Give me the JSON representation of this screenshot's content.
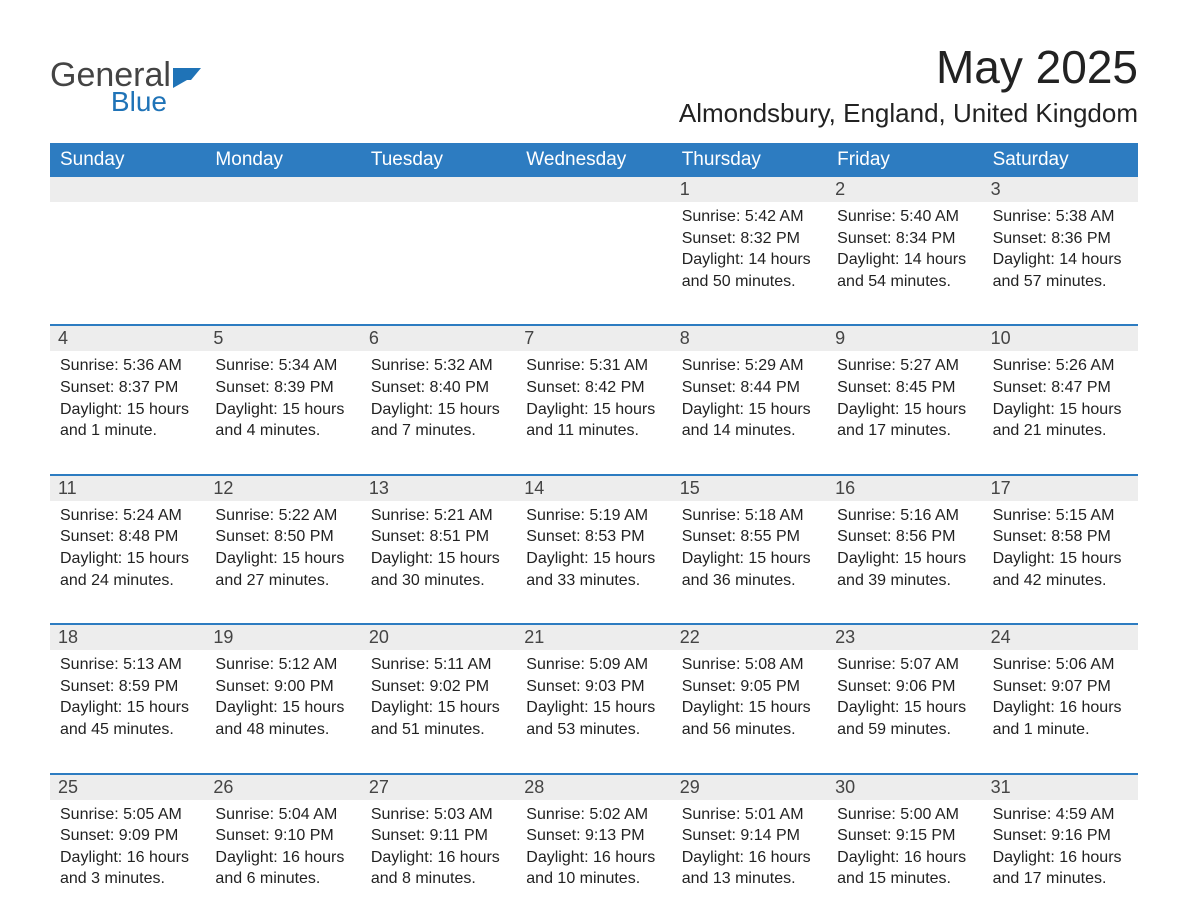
{
  "logo": {
    "text1": "General",
    "text2": "Blue",
    "icon_color": "#1f73b7",
    "text1_color": "#444444",
    "text2_color": "#1f73b7"
  },
  "title": "May 2025",
  "location": "Almondsbury, England, United Kingdom",
  "colors": {
    "header_bg": "#2d7cc1",
    "header_text": "#ffffff",
    "daynum_bg": "#ededed",
    "row_border": "#2d7cc1",
    "body_text": "#222222",
    "background": "#ffffff"
  },
  "fonts": {
    "title_size": 46,
    "location_size": 26,
    "weekday_size": 19,
    "daynum_size": 18,
    "body_size": 16
  },
  "weekdays": [
    "Sunday",
    "Monday",
    "Tuesday",
    "Wednesday",
    "Thursday",
    "Friday",
    "Saturday"
  ],
  "weeks": [
    [
      {
        "num": "",
        "sunrise": "",
        "sunset": "",
        "daylight1": "",
        "daylight2": ""
      },
      {
        "num": "",
        "sunrise": "",
        "sunset": "",
        "daylight1": "",
        "daylight2": ""
      },
      {
        "num": "",
        "sunrise": "",
        "sunset": "",
        "daylight1": "",
        "daylight2": ""
      },
      {
        "num": "",
        "sunrise": "",
        "sunset": "",
        "daylight1": "",
        "daylight2": ""
      },
      {
        "num": "1",
        "sunrise": "Sunrise: 5:42 AM",
        "sunset": "Sunset: 8:32 PM",
        "daylight1": "Daylight: 14 hours",
        "daylight2": "and 50 minutes."
      },
      {
        "num": "2",
        "sunrise": "Sunrise: 5:40 AM",
        "sunset": "Sunset: 8:34 PM",
        "daylight1": "Daylight: 14 hours",
        "daylight2": "and 54 minutes."
      },
      {
        "num": "3",
        "sunrise": "Sunrise: 5:38 AM",
        "sunset": "Sunset: 8:36 PM",
        "daylight1": "Daylight: 14 hours",
        "daylight2": "and 57 minutes."
      }
    ],
    [
      {
        "num": "4",
        "sunrise": "Sunrise: 5:36 AM",
        "sunset": "Sunset: 8:37 PM",
        "daylight1": "Daylight: 15 hours",
        "daylight2": "and 1 minute."
      },
      {
        "num": "5",
        "sunrise": "Sunrise: 5:34 AM",
        "sunset": "Sunset: 8:39 PM",
        "daylight1": "Daylight: 15 hours",
        "daylight2": "and 4 minutes."
      },
      {
        "num": "6",
        "sunrise": "Sunrise: 5:32 AM",
        "sunset": "Sunset: 8:40 PM",
        "daylight1": "Daylight: 15 hours",
        "daylight2": "and 7 minutes."
      },
      {
        "num": "7",
        "sunrise": "Sunrise: 5:31 AM",
        "sunset": "Sunset: 8:42 PM",
        "daylight1": "Daylight: 15 hours",
        "daylight2": "and 11 minutes."
      },
      {
        "num": "8",
        "sunrise": "Sunrise: 5:29 AM",
        "sunset": "Sunset: 8:44 PM",
        "daylight1": "Daylight: 15 hours",
        "daylight2": "and 14 minutes."
      },
      {
        "num": "9",
        "sunrise": "Sunrise: 5:27 AM",
        "sunset": "Sunset: 8:45 PM",
        "daylight1": "Daylight: 15 hours",
        "daylight2": "and 17 minutes."
      },
      {
        "num": "10",
        "sunrise": "Sunrise: 5:26 AM",
        "sunset": "Sunset: 8:47 PM",
        "daylight1": "Daylight: 15 hours",
        "daylight2": "and 21 minutes."
      }
    ],
    [
      {
        "num": "11",
        "sunrise": "Sunrise: 5:24 AM",
        "sunset": "Sunset: 8:48 PM",
        "daylight1": "Daylight: 15 hours",
        "daylight2": "and 24 minutes."
      },
      {
        "num": "12",
        "sunrise": "Sunrise: 5:22 AM",
        "sunset": "Sunset: 8:50 PM",
        "daylight1": "Daylight: 15 hours",
        "daylight2": "and 27 minutes."
      },
      {
        "num": "13",
        "sunrise": "Sunrise: 5:21 AM",
        "sunset": "Sunset: 8:51 PM",
        "daylight1": "Daylight: 15 hours",
        "daylight2": "and 30 minutes."
      },
      {
        "num": "14",
        "sunrise": "Sunrise: 5:19 AM",
        "sunset": "Sunset: 8:53 PM",
        "daylight1": "Daylight: 15 hours",
        "daylight2": "and 33 minutes."
      },
      {
        "num": "15",
        "sunrise": "Sunrise: 5:18 AM",
        "sunset": "Sunset: 8:55 PM",
        "daylight1": "Daylight: 15 hours",
        "daylight2": "and 36 minutes."
      },
      {
        "num": "16",
        "sunrise": "Sunrise: 5:16 AM",
        "sunset": "Sunset: 8:56 PM",
        "daylight1": "Daylight: 15 hours",
        "daylight2": "and 39 minutes."
      },
      {
        "num": "17",
        "sunrise": "Sunrise: 5:15 AM",
        "sunset": "Sunset: 8:58 PM",
        "daylight1": "Daylight: 15 hours",
        "daylight2": "and 42 minutes."
      }
    ],
    [
      {
        "num": "18",
        "sunrise": "Sunrise: 5:13 AM",
        "sunset": "Sunset: 8:59 PM",
        "daylight1": "Daylight: 15 hours",
        "daylight2": "and 45 minutes."
      },
      {
        "num": "19",
        "sunrise": "Sunrise: 5:12 AM",
        "sunset": "Sunset: 9:00 PM",
        "daylight1": "Daylight: 15 hours",
        "daylight2": "and 48 minutes."
      },
      {
        "num": "20",
        "sunrise": "Sunrise: 5:11 AM",
        "sunset": "Sunset: 9:02 PM",
        "daylight1": "Daylight: 15 hours",
        "daylight2": "and 51 minutes."
      },
      {
        "num": "21",
        "sunrise": "Sunrise: 5:09 AM",
        "sunset": "Sunset: 9:03 PM",
        "daylight1": "Daylight: 15 hours",
        "daylight2": "and 53 minutes."
      },
      {
        "num": "22",
        "sunrise": "Sunrise: 5:08 AM",
        "sunset": "Sunset: 9:05 PM",
        "daylight1": "Daylight: 15 hours",
        "daylight2": "and 56 minutes."
      },
      {
        "num": "23",
        "sunrise": "Sunrise: 5:07 AM",
        "sunset": "Sunset: 9:06 PM",
        "daylight1": "Daylight: 15 hours",
        "daylight2": "and 59 minutes."
      },
      {
        "num": "24",
        "sunrise": "Sunrise: 5:06 AM",
        "sunset": "Sunset: 9:07 PM",
        "daylight1": "Daylight: 16 hours",
        "daylight2": "and 1 minute."
      }
    ],
    [
      {
        "num": "25",
        "sunrise": "Sunrise: 5:05 AM",
        "sunset": "Sunset: 9:09 PM",
        "daylight1": "Daylight: 16 hours",
        "daylight2": "and 3 minutes."
      },
      {
        "num": "26",
        "sunrise": "Sunrise: 5:04 AM",
        "sunset": "Sunset: 9:10 PM",
        "daylight1": "Daylight: 16 hours",
        "daylight2": "and 6 minutes."
      },
      {
        "num": "27",
        "sunrise": "Sunrise: 5:03 AM",
        "sunset": "Sunset: 9:11 PM",
        "daylight1": "Daylight: 16 hours",
        "daylight2": "and 8 minutes."
      },
      {
        "num": "28",
        "sunrise": "Sunrise: 5:02 AM",
        "sunset": "Sunset: 9:13 PM",
        "daylight1": "Daylight: 16 hours",
        "daylight2": "and 10 minutes."
      },
      {
        "num": "29",
        "sunrise": "Sunrise: 5:01 AM",
        "sunset": "Sunset: 9:14 PM",
        "daylight1": "Daylight: 16 hours",
        "daylight2": "and 13 minutes."
      },
      {
        "num": "30",
        "sunrise": "Sunrise: 5:00 AM",
        "sunset": "Sunset: 9:15 PM",
        "daylight1": "Daylight: 16 hours",
        "daylight2": "and 15 minutes."
      },
      {
        "num": "31",
        "sunrise": "Sunrise: 4:59 AM",
        "sunset": "Sunset: 9:16 PM",
        "daylight1": "Daylight: 16 hours",
        "daylight2": "and 17 minutes."
      }
    ]
  ]
}
